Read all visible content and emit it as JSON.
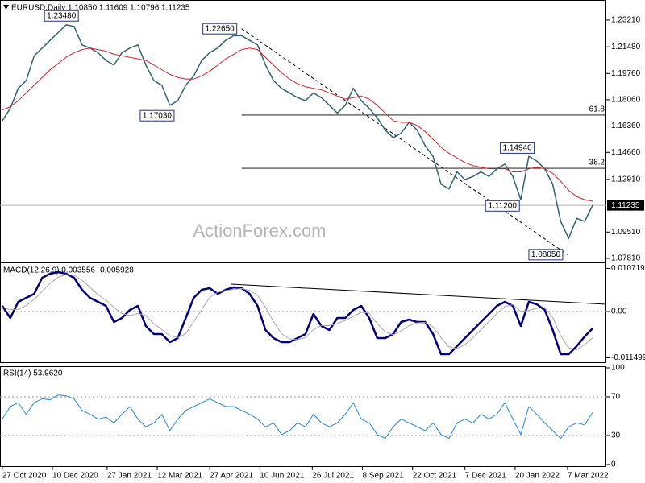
{
  "chart_data": [
    {
      "type": "line",
      "title": "EURUSD,Daily  1.10850 1.11609 1.10796 1.11235",
      "x": [
        "2020-10-27",
        "2020-11-03",
        "2020-11-10",
        "2020-11-17",
        "2020-11-24",
        "2020-12-01",
        "2020-12-08",
        "2020-12-15",
        "2020-12-22",
        "2020-12-29",
        "2021-01-05",
        "2021-01-12",
        "2021-01-19",
        "2021-01-26",
        "2021-02-02",
        "2021-02-09",
        "2021-02-16",
        "2021-02-23",
        "2021-03-02",
        "2021-03-09",
        "2021-03-16",
        "2021-03-23",
        "2021-03-30",
        "2021-04-06",
        "2021-04-13",
        "2021-04-20",
        "2021-04-27",
        "2021-05-04",
        "2021-05-11",
        "2021-05-18",
        "2021-05-25",
        "2021-06-01",
        "2021-06-08",
        "2021-06-15",
        "2021-06-22",
        "2021-06-29",
        "2021-07-06",
        "2021-07-13",
        "2021-07-20",
        "2021-07-27",
        "2021-08-03",
        "2021-08-10",
        "2021-08-17",
        "2021-08-24",
        "2021-08-31",
        "2021-09-07",
        "2021-09-14",
        "2021-09-21",
        "2021-09-28",
        "2021-10-05",
        "2021-10-12",
        "2021-10-19",
        "2021-10-26",
        "2021-11-02",
        "2021-11-09",
        "2021-11-16",
        "2021-11-23",
        "2021-11-30",
        "2021-12-07",
        "2021-12-14",
        "2021-12-21",
        "2021-12-28",
        "2022-01-04",
        "2022-01-11",
        "2022-01-18",
        "2022-01-25",
        "2022-02-01",
        "2022-02-08",
        "2022-02-15",
        "2022-02-22",
        "2022-03-01",
        "2022-03-08",
        "2022-03-15",
        "2022-03-22",
        "2022-03-29"
      ],
      "xlim": [
        "2020-10-25",
        "2022-04-10"
      ],
      "xticks": [
        {
          "value": "2020-10-27",
          "label": "27 Oct 2020"
        },
        {
          "value": "2020-12-10",
          "label": "10 Dec 2020"
        },
        {
          "value": "2021-01-27",
          "label": "27 Jan 2021"
        },
        {
          "value": "2021-03-12",
          "label": "12 Mar 2021"
        },
        {
          "value": "2021-04-27",
          "label": "27 Apr 2021"
        },
        {
          "value": "2021-06-10",
          "label": "10 Jun 2021"
        },
        {
          "value": "2021-07-26",
          "label": "26 Jul 2021"
        },
        {
          "value": "2021-09-08",
          "label": "8 Sep 2021"
        },
        {
          "value": "2021-10-22",
          "label": "22 Oct 2021"
        },
        {
          "value": "2021-12-07",
          "label": "7 Dec 2021"
        },
        {
          "value": "2022-01-20",
          "label": "20 Jan 2022"
        },
        {
          "value": "2022-03-07",
          "label": "7 Mar 2022"
        }
      ],
      "series": [
        {
          "color": "#2f6470",
          "values": [
            1.167,
            1.175,
            1.188,
            1.193,
            1.209,
            1.214,
            1.219,
            1.224,
            1.229,
            1.228,
            1.216,
            1.214,
            1.211,
            1.206,
            1.203,
            1.211,
            1.214,
            1.216,
            1.203,
            1.193,
            1.19,
            1.177,
            1.18,
            1.19,
            1.196,
            1.206,
            1.211,
            1.214,
            1.219,
            1.222,
            1.222,
            1.219,
            1.216,
            1.203,
            1.193,
            1.188,
            1.185,
            1.182,
            1.18,
            1.185,
            1.182,
            1.177,
            1.172,
            1.177,
            1.188,
            1.18,
            1.175,
            1.169,
            1.161,
            1.156,
            1.159,
            1.166,
            1.161,
            1.151,
            1.144,
            1.126,
            1.123,
            1.134,
            1.129,
            1.131,
            1.134,
            1.131,
            1.136,
            1.139,
            1.131,
            1.116,
            1.144,
            1.141,
            1.136,
            1.126,
            1.102,
            1.091,
            1.104,
            1.102,
            1.1124
          ]
        },
        {
          "color": "#d8232a",
          "values": [
            1.174,
            1.176,
            1.18,
            1.185,
            1.19,
            1.195,
            1.2,
            1.204,
            1.208,
            1.211,
            1.213,
            1.214,
            1.213,
            1.212,
            1.21,
            1.209,
            1.208,
            1.207,
            1.206,
            1.203,
            1.2,
            1.197,
            1.195,
            1.194,
            1.194,
            1.196,
            1.199,
            1.203,
            1.207,
            1.21,
            1.213,
            1.214,
            1.213,
            1.208,
            1.203,
            1.198,
            1.194,
            1.191,
            1.189,
            1.188,
            1.187,
            1.185,
            1.183,
            1.181,
            1.182,
            1.183,
            1.181,
            1.177,
            1.172,
            1.167,
            1.166,
            1.166,
            1.164,
            1.16,
            1.155,
            1.15,
            1.146,
            1.143,
            1.14,
            1.138,
            1.137,
            1.136,
            1.136,
            1.136,
            1.134,
            1.134,
            1.136,
            1.137,
            1.136,
            1.133,
            1.128,
            1.122,
            1.118,
            1.116,
            1.115
          ]
        }
      ],
      "ylim": [
        1.076,
        1.2435
      ],
      "yticks": [
        {
          "value": 1.2321,
          "label": "1.23210"
        },
        {
          "value": 1.2148,
          "label": "1.21480"
        },
        {
          "value": 1.1976,
          "label": "1.19760"
        },
        {
          "value": 1.1806,
          "label": "1.18060"
        },
        {
          "value": 1.1636,
          "label": "1.16360"
        },
        {
          "value": 1.1466,
          "label": "1.14660"
        },
        {
          "value": 1.1291,
          "label": "1.12910"
        },
        {
          "value": 1.0951,
          "label": "1.09510"
        },
        {
          "value": 1.0781,
          "label": "1.07810"
        }
      ],
      "last_price": {
        "value": 1.11235,
        "label": "1.11235"
      },
      "annotations": [
        {
          "x": "2021-01-06",
          "value": 1.2348,
          "label": "1.23480"
        },
        {
          "x": "2021-05-25",
          "value": 1.2265,
          "label": "1.22650"
        },
        {
          "x": "2021-03-31",
          "value": 1.1703,
          "label": "1.17030"
        },
        {
          "x": "2022-02-10",
          "value": 1.1494,
          "label": "1.14940"
        },
        {
          "x": "2022-01-28",
          "value": 1.112,
          "label": "1.11200"
        },
        {
          "x": "2022-03-07",
          "value": 1.0805,
          "label": "1.08050"
        }
      ],
      "levels": [
        {
          "value": 1.1707,
          "label": "61.8",
          "from": "2021-05-25"
        },
        {
          "value": 1.1363,
          "label": "38.2",
          "from": "2021-05-25"
        }
      ],
      "trendline": {
        "x": [
          "2021-05-25",
          "2022-03-07"
        ],
        "values": [
          1.2265,
          1.0805
        ]
      },
      "watermark": "ActionForex.com"
    },
    {
      "type": "line",
      "title": "MACD(12,26,9) 0.003556 -0.005928",
      "series": [
        {
          "color": "#00007f",
          "values": [
            0.0014,
            -0.0016,
            0.0024,
            0.0034,
            0.0044,
            0.0084,
            0.0094,
            0.0098,
            0.0094,
            0.0084,
            0.0054,
            0.0034,
            0.0024,
            0.0014,
            -0.0026,
            -0.0016,
            0.0004,
            0.0014,
            -0.0036,
            -0.0056,
            -0.0056,
            -0.0076,
            -0.0066,
            -0.0016,
            0.0034,
            0.0054,
            0.0058,
            0.0044,
            0.0054,
            0.006,
            0.0058,
            0.0044,
            0.0014,
            -0.0046,
            -0.0066,
            -0.0076,
            -0.0076,
            -0.0066,
            -0.0056,
            -0.0006,
            -0.0036,
            -0.0046,
            -0.0016,
            -0.0016,
            0.0004,
            0.0014,
            -0.0016,
            -0.0066,
            -0.0066,
            -0.0056,
            -0.0026,
            -0.002,
            -0.0026,
            -0.0026,
            -0.0056,
            -0.0106,
            -0.0106,
            -0.0086,
            -0.0066,
            -0.0046,
            -0.0026,
            -0.0006,
            0.0014,
            0.0024,
            0.0014,
            -0.0036,
            0.0024,
            0.0018,
            0.0004,
            -0.0046,
            -0.0106,
            -0.0106,
            -0.0086,
            -0.0062,
            -0.0042
          ]
        },
        {
          "color": "#a8a8a8",
          "values": [
            0.001,
            0.0005,
            0.0005,
            0.0015,
            0.003,
            0.005,
            0.007,
            0.0085,
            0.0092,
            0.009,
            0.0078,
            0.006,
            0.0042,
            0.0028,
            0.001,
            -0.0005,
            -0.001,
            -0.0005,
            -0.001,
            -0.003,
            -0.0045,
            -0.006,
            -0.0065,
            -0.0055,
            -0.0025,
            0.0005,
            0.0035,
            0.0048,
            0.0052,
            0.0055,
            0.0057,
            0.0053,
            0.004,
            0.001,
            -0.0025,
            -0.0055,
            -0.0068,
            -0.007,
            -0.0065,
            -0.0045,
            -0.0035,
            -0.0035,
            -0.003,
            -0.0022,
            -0.0012,
            -0.0002,
            -0.0004,
            -0.003,
            -0.005,
            -0.0058,
            -0.0048,
            -0.0035,
            -0.0028,
            -0.0027,
            -0.0038,
            -0.0065,
            -0.0088,
            -0.0092,
            -0.0082,
            -0.0065,
            -0.0045,
            -0.0025,
            -0.0005,
            0.0012,
            0.0017,
            0,
            0.0003,
            0.0008,
            0.001,
            -0.0015,
            -0.006,
            -0.009,
            -0.0095,
            -0.0082,
            -0.0065
          ]
        }
      ],
      "ylim": [
        -0.0126,
        0.012
      ],
      "yticks": [
        0.010719,
        {
          "value": 0,
          "label": "0.00"
        },
        -0.011499
      ],
      "levels": [
        0
      ],
      "trendline": {
        "x": [
          "2021-05-16",
          "2022-04-10"
        ],
        "values": [
          0.0068,
          0.0018
        ]
      }
    },
    {
      "type": "line",
      "title": "RSI(14) 53.9620",
      "series": [
        {
          "color": "#1e88e5",
          "values": [
            47,
            60,
            64,
            52,
            64,
            68,
            67,
            72,
            71,
            68,
            56,
            52,
            47,
            49,
            43,
            52,
            60,
            47,
            39,
            43,
            52,
            35,
            47,
            56,
            60,
            64,
            68,
            64,
            60,
            60,
            56,
            52,
            47,
            39,
            43,
            31,
            35,
            43,
            39,
            52,
            43,
            39,
            43,
            52,
            64,
            47,
            43,
            31,
            27,
            39,
            47,
            43,
            39,
            35,
            43,
            31,
            27,
            43,
            47,
            43,
            52,
            47,
            52,
            64,
            47,
            31,
            60,
            52,
            43,
            35,
            27,
            39,
            43,
            41,
            53.962
          ]
        }
      ],
      "ylim": [
        0,
        100
      ],
      "yticks": [
        100,
        70,
        30,
        0
      ],
      "levels": [
        70,
        30
      ]
    }
  ]
}
